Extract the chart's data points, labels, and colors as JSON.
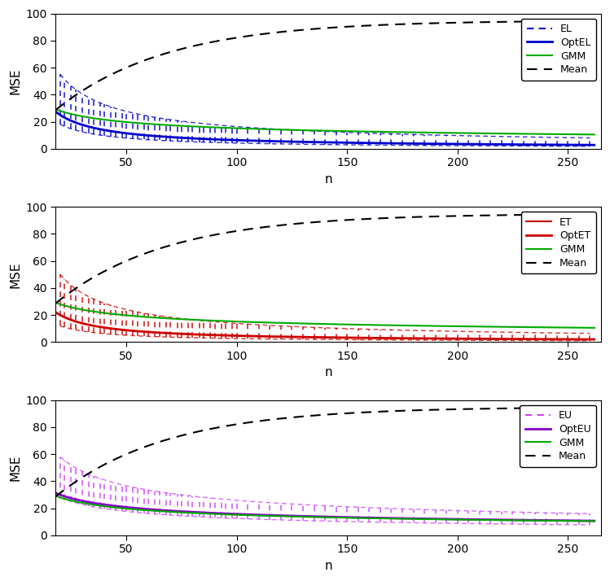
{
  "n_values_dense": [
    20,
    22,
    25,
    27,
    30,
    33,
    35,
    38,
    40,
    43,
    45,
    48,
    50,
    53,
    55,
    58,
    60,
    63,
    65,
    68,
    70,
    73,
    75,
    78,
    80,
    83,
    85,
    88,
    90,
    93,
    95,
    98,
    100,
    105,
    110,
    115,
    120,
    125,
    130,
    135,
    140,
    145,
    150,
    155,
    160,
    165,
    170,
    175,
    180,
    185,
    190,
    195,
    200,
    205,
    210,
    215,
    220,
    225,
    230,
    235,
    240,
    245,
    250,
    255,
    260
  ],
  "ylim": [
    0,
    100
  ],
  "xlim_lo": 18,
  "xlim_hi": 265,
  "xlabel": "n",
  "ylabel": "MSE",
  "xticks": [
    50,
    100,
    150,
    200,
    250
  ],
  "yticks": [
    0,
    20,
    40,
    60,
    80,
    100
  ],
  "plot1": {
    "main_color": "#0000CC",
    "opt_color": "#0000CC",
    "gmm_color": "#00AA00",
    "mean_color": "#000000",
    "legend_labels": [
      "EL",
      "OptEL",
      "GMM",
      "Mean"
    ]
  },
  "plot2": {
    "main_color": "#CC0000",
    "opt_color": "#CC0000",
    "gmm_color": "#00AA00",
    "mean_color": "#000000",
    "legend_labels": [
      "ET",
      "OptET",
      "GMM",
      "Mean"
    ]
  },
  "plot3": {
    "main_color": "#CC44FF",
    "opt_color": "#8800CC",
    "gmm_color": "#00AA00",
    "mean_color": "#000000",
    "legend_labels": [
      "EU",
      "OptEU",
      "GMM",
      "Mean"
    ]
  },
  "bg_color": "#FFFFFF"
}
